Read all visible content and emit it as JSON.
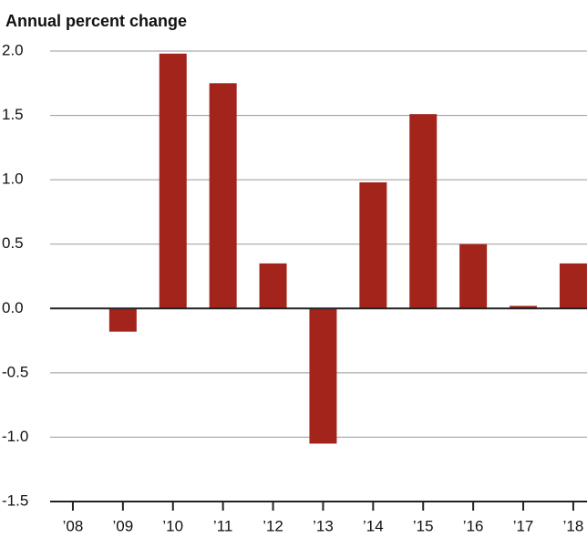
{
  "chart_data": {
    "type": "bar",
    "title": "Annual percent change",
    "categories": [
      "’08",
      "’09",
      "’10",
      "’11",
      "’12",
      "’13",
      "’14",
      "’15",
      "’16",
      "’17",
      "’18"
    ],
    "values": [
      0,
      -0.18,
      1.98,
      1.75,
      0.35,
      -1.05,
      0.98,
      1.51,
      0.5,
      0.02,
      0.35
    ],
    "color": "#a3241a",
    "ylim": [
      -1.5,
      2.0
    ],
    "yticks": [
      {
        "value": -1.5,
        "label": "-1.5"
      },
      {
        "value": -1.0,
        "label": "-1.0"
      },
      -0.5,
      {
        "value": 0,
        "label": "0.0"
      },
      0.5,
      {
        "value": 1.0,
        "label": "1.0"
      },
      1.5,
      {
        "value": 2.0,
        "label": "2.0"
      }
    ],
    "grid": true
  }
}
